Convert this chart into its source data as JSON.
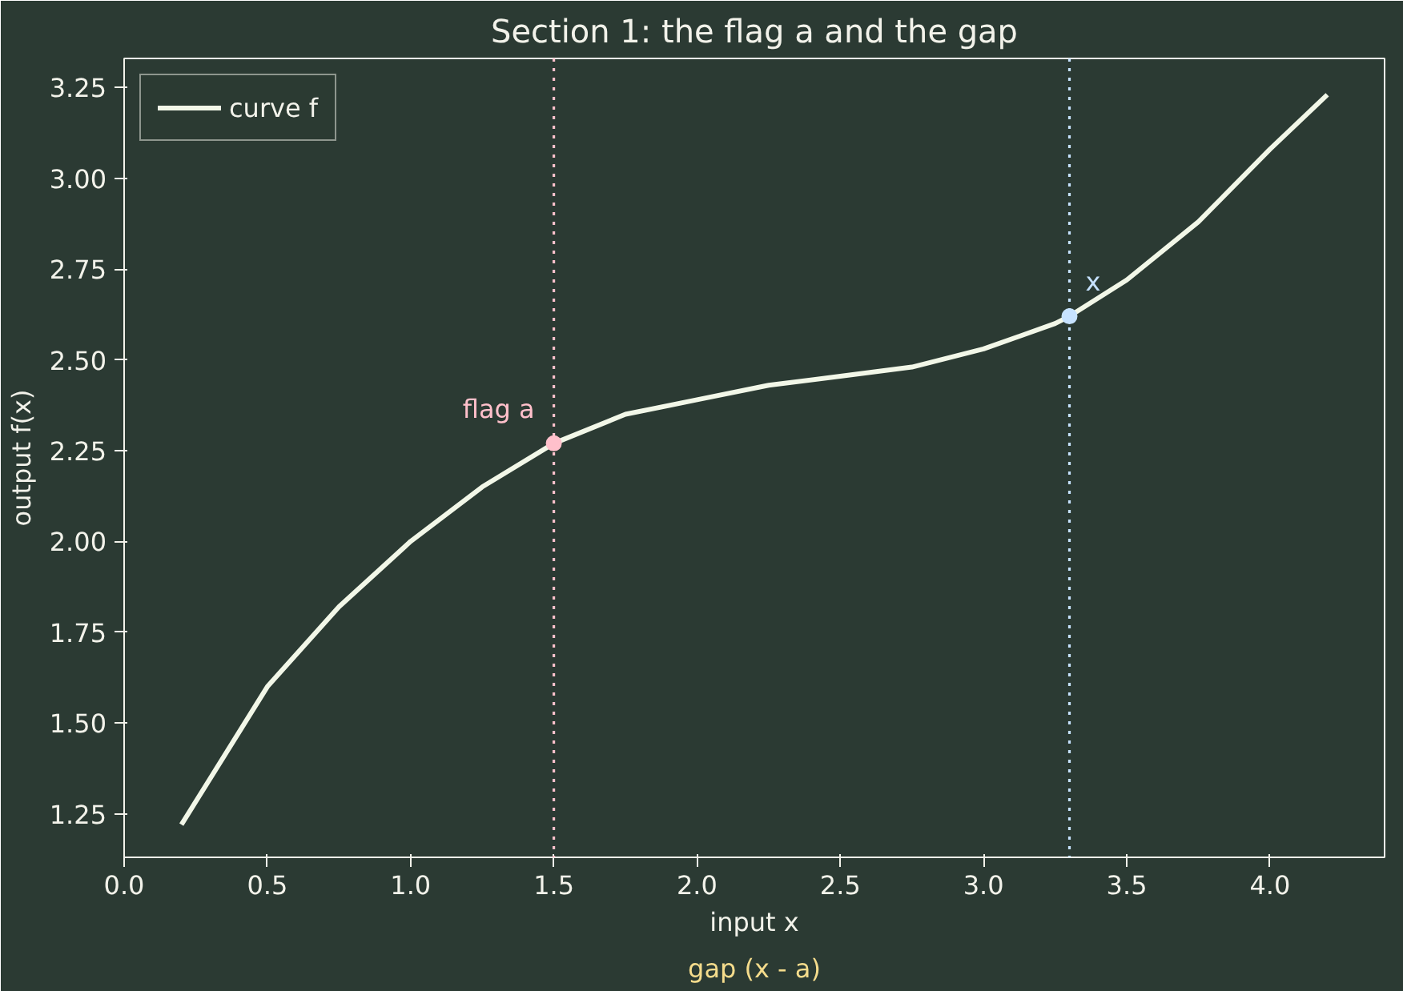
{
  "chart_data": {
    "type": "line",
    "title": "Section 1: the flag a and the gap",
    "xlabel": "input x",
    "ylabel": "output f(x)",
    "x": [
      0.2,
      0.5,
      0.75,
      1.0,
      1.25,
      1.5,
      1.75,
      2.0,
      2.25,
      2.5,
      2.75,
      3.0,
      3.25,
      3.3,
      3.5,
      3.75,
      4.0,
      4.2
    ],
    "series": [
      {
        "name": "curve f",
        "color": "#f2f7e8",
        "values": [
          1.22,
          1.6,
          1.82,
          2.0,
          2.15,
          2.27,
          2.35,
          2.39,
          2.43,
          2.455,
          2.48,
          2.53,
          2.6,
          2.62,
          2.72,
          2.88,
          3.08,
          3.23
        ]
      },
      {
        "type": "scatter",
        "marker": "circle",
        "color": "#ffc0cb",
        "x": [
          1.5
        ],
        "values": [
          2.27
        ]
      },
      {
        "type": "scatter",
        "marker": "circle",
        "color": "#c6e2ff",
        "x": [
          3.3
        ],
        "values": [
          2.62
        ]
      }
    ],
    "xlim": [
      0,
      4.4
    ],
    "ylim": [
      1.13,
      3.33
    ],
    "xticks": [
      {
        "value": 0,
        "label": "0.0"
      },
      {
        "value": 0.5,
        "label": "0.5"
      },
      {
        "value": 1,
        "label": "1.0"
      },
      {
        "value": 1.5,
        "label": "1.5"
      },
      {
        "value": 2,
        "label": "2.0"
      },
      {
        "value": 2.5,
        "label": "2.5"
      },
      {
        "value": 3,
        "label": "3.0"
      },
      {
        "value": 3.5,
        "label": "3.5"
      },
      {
        "value": 4,
        "label": "4.0"
      }
    ],
    "yticks": [
      {
        "value": 1.25,
        "label": "1.25"
      },
      {
        "value": 1.5,
        "label": "1.50"
      },
      {
        "value": 1.75,
        "label": "1.75"
      },
      {
        "value": 2,
        "label": "2.00"
      },
      {
        "value": 2.25,
        "label": "2.25"
      },
      {
        "value": 2.5,
        "label": "2.50"
      },
      {
        "value": 2.75,
        "label": "2.75"
      },
      {
        "value": 3,
        "label": "3.00"
      },
      {
        "value": 3.25,
        "label": "3.25"
      }
    ],
    "ref_lines": [
      {
        "axis": "x",
        "value": 1.5,
        "color": "#ffc0cb",
        "line_style": "dotted"
      },
      {
        "axis": "x",
        "value": 3.3,
        "color": "#c6e2ff",
        "line_style": "dotted"
      }
    ],
    "annotations": [
      {
        "text": "flag a",
        "x": 1.5,
        "y": 2.27
      },
      {
        "text": "x",
        "x": 3.3,
        "y": 2.62
      },
      "gap (x - a)"
    ],
    "legend": "top left",
    "grid": false,
    "line_style": "solid"
  }
}
